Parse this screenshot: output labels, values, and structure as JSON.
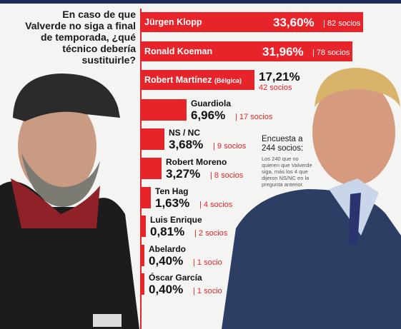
{
  "question": "En caso de que Valverde no siga a final de temporada, ¿qué técnico debería sustituirle?",
  "colors": {
    "accent": "#e8242b",
    "text_dark": "#111111",
    "text_red": "#e8242b"
  },
  "note": {
    "title": "Encuesta a 244 socios:",
    "body": "Los 240 que no quieren que Valverde siga, más los 4 que dijeron NS/NC en la pregunta anterior."
  },
  "chart_data": {
    "type": "bar",
    "title": "En caso de que Valverde no siga a final de temporada, ¿qué técnico debería sustituirle?",
    "unit": "%",
    "categories": [
      "Jürgen Klopp",
      "Ronald Koeman",
      "Robert Martínez (Bélgica)",
      "Guardiola",
      "NS / NC",
      "Robert Moreno",
      "Ten Hag",
      "Luis Enrique",
      "Abelardo",
      "Óscar García"
    ],
    "values": [
      33.6,
      31.96,
      17.21,
      6.96,
      3.68,
      3.27,
      1.63,
      0.81,
      0.4,
      0.4
    ],
    "pct_labels": [
      "33,60%",
      "31,96%",
      "17,21%",
      "6,96%",
      "3,68%",
      "3,27%",
      "1,63%",
      "0,81%",
      "0,40%",
      "0,40%"
    ],
    "socios_labels": [
      "82 socios",
      "78 socios",
      "42 socios",
      "17 socios",
      "9 socios",
      "8 socios",
      "4 socios",
      "2 socios",
      "1 socio",
      "1 socio"
    ]
  }
}
